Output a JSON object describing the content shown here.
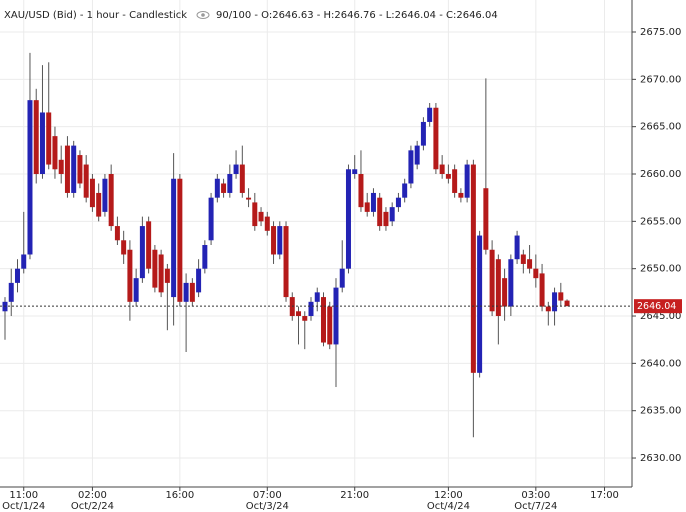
{
  "chart_data": {
    "type": "candlestick",
    "title": "XAU/USD (Bid) - 1 hour - Candlestick",
    "subtitle": "90/100 - O:2646.63 - H:2646.76 - L:2646.04 - C:2646.04",
    "up_color": "#2323b4",
    "down_color": "#b51a1a",
    "grid": true,
    "last_price": 2646.04,
    "last_price_color": "#c62020",
    "ylim": [
      2626.94,
      2678.38
    ],
    "yticks": [
      {
        "value": 2630,
        "label": "2630.00"
      },
      {
        "value": 2635,
        "label": "2635.00"
      },
      {
        "value": 2640,
        "label": "2640.00"
      },
      {
        "value": 2645,
        "label": "2645.00"
      },
      {
        "value": 2650,
        "label": "2650.00"
      },
      {
        "value": 2655,
        "label": "2655.00"
      },
      {
        "value": 2660,
        "label": "2660.00"
      },
      {
        "value": 2665,
        "label": "2665.00"
      },
      {
        "value": 2670,
        "label": "2670.00"
      },
      {
        "value": 2675,
        "label": "2675.00"
      }
    ],
    "categories": [
      null,
      null,
      null,
      "11:00",
      null,
      null,
      null,
      null,
      null,
      null,
      null,
      null,
      null,
      null,
      "02:00",
      null,
      null,
      null,
      null,
      null,
      null,
      null,
      null,
      null,
      null,
      null,
      null,
      null,
      "16:00",
      null,
      null,
      null,
      null,
      null,
      null,
      null,
      null,
      null,
      null,
      null,
      null,
      null,
      "07:00",
      null,
      null,
      null,
      null,
      null,
      null,
      null,
      null,
      null,
      null,
      null,
      null,
      null,
      "21:00",
      null,
      null,
      null,
      null,
      null,
      null,
      null,
      null,
      null,
      null,
      null,
      null,
      null,
      null,
      "12:00",
      null,
      null,
      null,
      null,
      null,
      null,
      null,
      null,
      null,
      null,
      null,
      null,
      null,
      "03:00",
      null,
      null,
      null,
      null,
      null,
      null,
      null,
      null,
      null,
      null,
      "17:00"
    ],
    "dates": [
      null,
      null,
      null,
      "Oct/1/24",
      null,
      null,
      null,
      null,
      null,
      null,
      null,
      null,
      null,
      null,
      "Oct/2/24",
      null,
      null,
      null,
      null,
      null,
      null,
      null,
      null,
      null,
      null,
      null,
      null,
      null,
      null,
      null,
      null,
      null,
      null,
      null,
      null,
      null,
      null,
      null,
      null,
      null,
      null,
      null,
      "Oct/3/24",
      null,
      null,
      null,
      null,
      null,
      null,
      null,
      null,
      null,
      null,
      null,
      null,
      null,
      null,
      null,
      null,
      null,
      null,
      null,
      null,
      null,
      null,
      null,
      null,
      null,
      null,
      null,
      null,
      "Oct/4/24",
      null,
      null,
      null,
      null,
      null,
      null,
      null,
      null,
      null,
      null,
      null,
      null,
      null,
      "Oct/7/24",
      null,
      null,
      null,
      null,
      null,
      null,
      null,
      null,
      null,
      null,
      null
    ],
    "ohlc": [
      [
        2645.5,
        2647,
        2642.5,
        2646.5
      ],
      [
        2646.5,
        2650,
        2645,
        2648.5
      ],
      [
        2648.5,
        2651,
        2647.5,
        2650
      ],
      [
        2650,
        2656,
        2649.5,
        2651.5
      ],
      [
        2651.5,
        2672.8,
        2651,
        2667.8
      ],
      [
        2667.8,
        2669,
        2659,
        2660
      ],
      [
        2660,
        2671.5,
        2659.5,
        2666.5
      ],
      [
        2666.5,
        2671.8,
        2660.5,
        2661
      ],
      [
        2664,
        2665,
        2659.5,
        2660.5
      ],
      [
        2661.5,
        2663,
        2659,
        2660
      ],
      [
        2663,
        2664,
        2657.5,
        2658
      ],
      [
        2658,
        2663.5,
        2657.5,
        2663
      ],
      [
        2662,
        2662.5,
        2658.5,
        2659
      ],
      [
        2661,
        2662,
        2657,
        2657.5
      ],
      [
        2659.5,
        2660,
        2656,
        2656.5
      ],
      [
        2658,
        2659,
        2655,
        2655.5
      ],
      [
        2656,
        2660,
        2655.5,
        2659.5
      ],
      [
        2660,
        2661,
        2654,
        2654.5
      ],
      [
        2654.5,
        2655.5,
        2652.5,
        2653
      ],
      [
        2653,
        2654,
        2650.5,
        2651.5
      ],
      [
        2652,
        2653,
        2644.5,
        2646.5
      ],
      [
        2646.5,
        2650,
        2646,
        2649
      ],
      [
        2649,
        2655.5,
        2648.5,
        2654.5
      ],
      [
        2655,
        2655.5,
        2649.5,
        2650
      ],
      [
        2652,
        2652.5,
        2647.5,
        2648
      ],
      [
        2651.5,
        2652,
        2647,
        2647.5
      ],
      [
        2650,
        2650.5,
        2643.5,
        2648.5
      ],
      [
        2647,
        2662.2,
        2644,
        2659.5
      ],
      [
        2659.5,
        2660,
        2646,
        2646.5
      ],
      [
        2646.5,
        2649.5,
        2641.2,
        2648.5
      ],
      [
        2648.5,
        2649,
        2646,
        2646.5
      ],
      [
        2647.5,
        2651,
        2647,
        2650
      ],
      [
        2650,
        2653,
        2649.5,
        2652.5
      ],
      [
        2653,
        2658,
        2652.5,
        2657.5
      ],
      [
        2657.5,
        2660,
        2657,
        2659.5
      ],
      [
        2659,
        2659.5,
        2657.5,
        2658
      ],
      [
        2658,
        2661,
        2657.5,
        2660
      ],
      [
        2660,
        2662.5,
        2659.5,
        2661
      ],
      [
        2661,
        2663,
        2657.5,
        2658
      ],
      [
        2657.5,
        2658.5,
        2656.5,
        2657.3
      ],
      [
        2657,
        2658,
        2654,
        2654.5
      ],
      [
        2656,
        2656.5,
        2654.5,
        2655
      ],
      [
        2655.5,
        2656,
        2653.5,
        2654
      ],
      [
        2654.5,
        2655,
        2650.5,
        2651.5
      ],
      [
        2651.5,
        2655,
        2651,
        2654.5
      ],
      [
        2654.5,
        2655,
        2646.5,
        2647
      ],
      [
        2647,
        2647.5,
        2644.5,
        2645
      ],
      [
        2645.5,
        2646,
        2642,
        2645
      ],
      [
        2645,
        2645.5,
        2641.5,
        2644.5
      ],
      [
        2645,
        2647,
        2644.5,
        2646.5
      ],
      [
        2646.5,
        2648,
        2645.5,
        2647.5
      ],
      [
        2647,
        2647.5,
        2641.8,
        2642.2
      ],
      [
        2646,
        2646.5,
        2641.5,
        2642
      ],
      [
        2642,
        2649,
        2637.5,
        2648
      ],
      [
        2648,
        2653,
        2647.5,
        2650
      ],
      [
        2650,
        2661,
        2649.5,
        2660.5
      ],
      [
        2660,
        2662,
        2659.5,
        2660.5
      ],
      [
        2660,
        2662.5,
        2656,
        2656.5
      ],
      [
        2657,
        2658,
        2655.5,
        2656
      ],
      [
        2656,
        2658.5,
        2655.5,
        2658
      ],
      [
        2657.5,
        2658,
        2654,
        2654.5
      ],
      [
        2656,
        2656.5,
        2654,
        2654.5
      ],
      [
        2655,
        2657,
        2654.5,
        2656.5
      ],
      [
        2656.5,
        2658,
        2656,
        2657.5
      ],
      [
        2657.5,
        2659.5,
        2657,
        2659
      ],
      [
        2659,
        2663,
        2658.5,
        2662.5
      ],
      [
        2661,
        2663.5,
        2660.5,
        2663
      ],
      [
        2663,
        2666,
        2662.5,
        2665.5
      ],
      [
        2665.5,
        2667.5,
        2665,
        2667
      ],
      [
        2667,
        2667.5,
        2660,
        2660.5
      ],
      [
        2661,
        2662,
        2659.5,
        2660
      ],
      [
        2660,
        2661,
        2659,
        2659.5
      ],
      [
        2660.5,
        2661,
        2657.5,
        2658
      ],
      [
        2658,
        2658.5,
        2657,
        2657.5
      ],
      [
        2657.5,
        2661.5,
        2657,
        2661
      ],
      [
        2661,
        2661.5,
        2632.2,
        2639
      ],
      [
        2639,
        2654,
        2638.5,
        2653.5
      ],
      [
        2658.5,
        2670.1,
        2651.5,
        2652
      ],
      [
        2652,
        2653,
        2645,
        2645.5
      ],
      [
        2651,
        2651.5,
        2642,
        2645
      ],
      [
        2649,
        2650,
        2644.5,
        2646
      ],
      [
        2646,
        2651.5,
        2645,
        2651
      ],
      [
        2651,
        2654,
        2650.5,
        2653.5
      ],
      [
        2651.5,
        2652,
        2649.5,
        2650.5
      ],
      [
        2651,
        2652.5,
        2649.5,
        2650
      ],
      [
        2650,
        2651.5,
        2648,
        2649
      ],
      [
        2649.5,
        2650.5,
        2645.5,
        2646
      ],
      [
        2646,
        2646.5,
        2644,
        2645.5
      ],
      [
        2645.5,
        2648,
        2644,
        2647.5
      ],
      [
        2647.5,
        2648.5,
        2646,
        2646.63
      ],
      [
        2646.63,
        2646.76,
        2646.04,
        2646.04
      ],
      null,
      null,
      null,
      null,
      null,
      null
    ]
  }
}
